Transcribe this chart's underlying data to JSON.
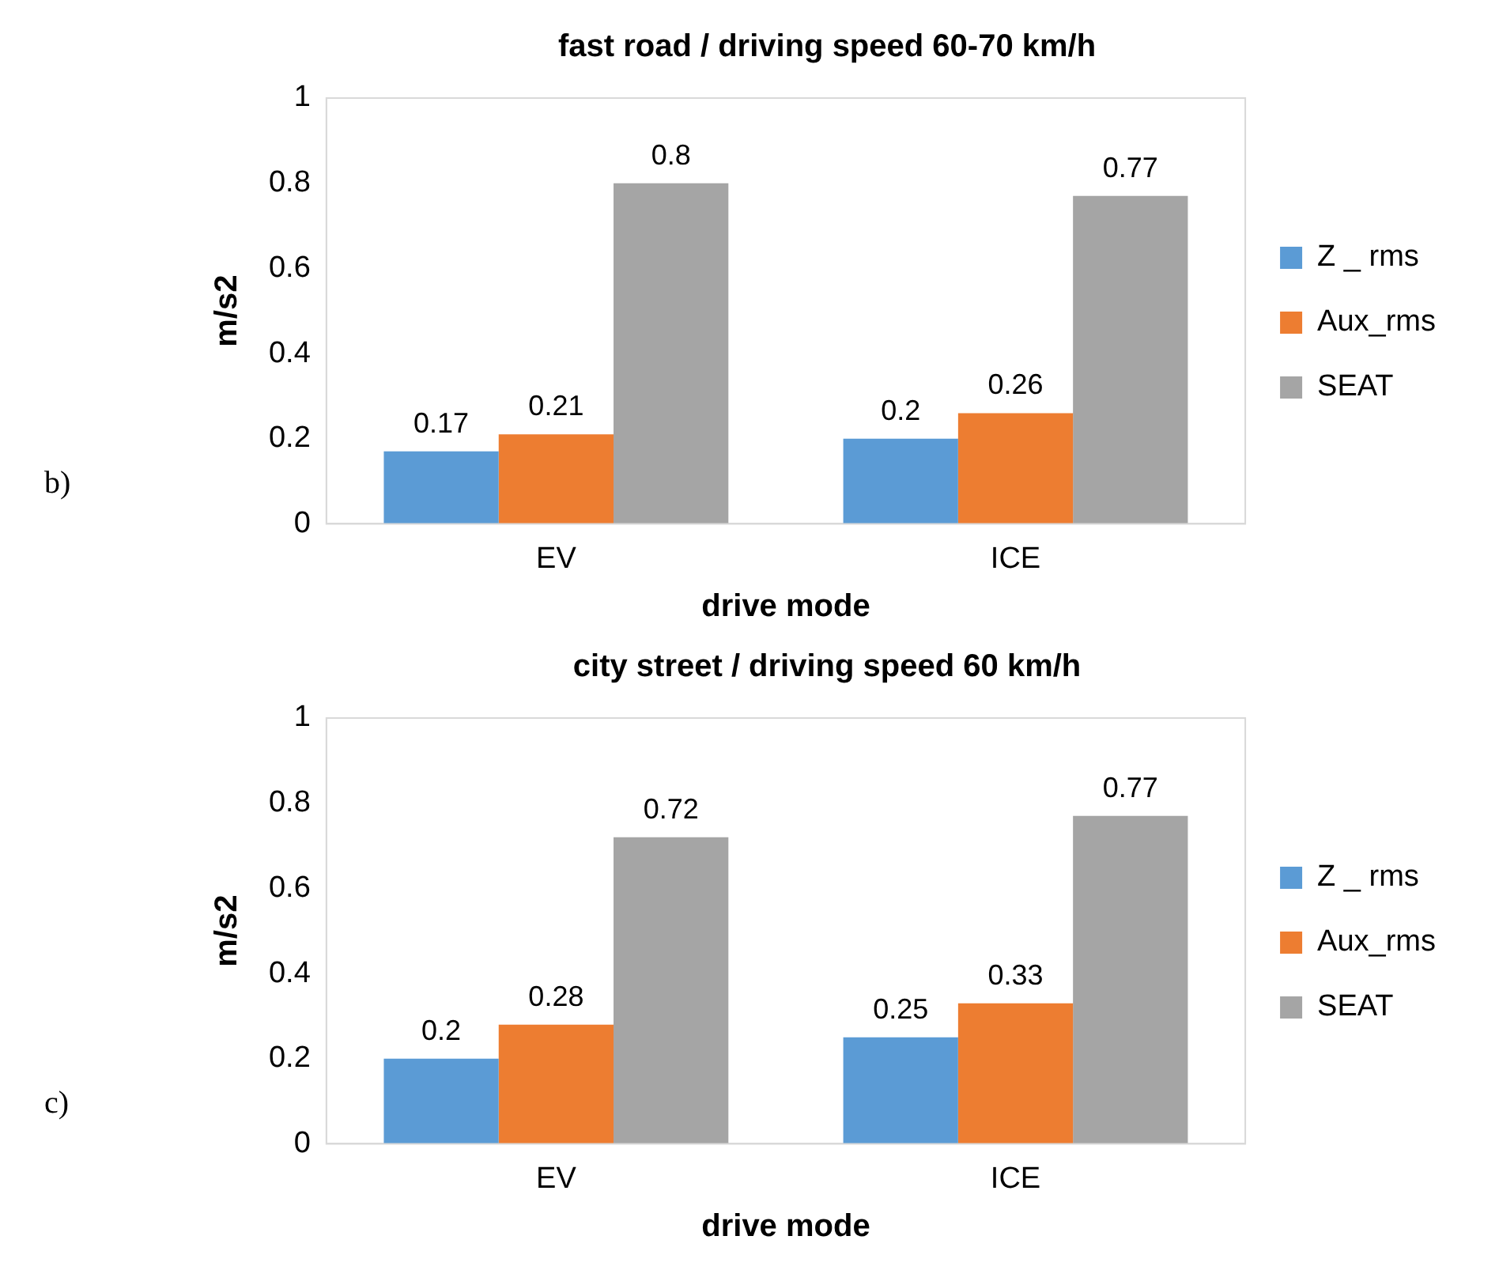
{
  "chart_data": [
    {
      "type": "bar",
      "title": "fast road / driving speed 60-70 km/h",
      "xlabel": "drive mode",
      "ylabel": "m/s2",
      "categories": [
        "EV",
        "ICE"
      ],
      "series": [
        {
          "name": "Z _ rms",
          "color": "#5b9bd5",
          "values": [
            0.17,
            0.2
          ]
        },
        {
          "name": "Aux_rms",
          "color": "#ed7d31",
          "values": [
            0.21,
            0.26
          ]
        },
        {
          "name": "SEAT",
          "color": "#a5a5a5",
          "values": [
            0.8,
            0.77
          ]
        }
      ],
      "ylim": [
        0,
        1
      ],
      "yticks": [
        0,
        0.2,
        0.4,
        0.6,
        0.8,
        1
      ],
      "grid": false,
      "legend": "right",
      "data_labels": true,
      "annotations": [
        "b)"
      ]
    },
    {
      "type": "bar",
      "title": "city street / driving speed 60 km/h",
      "xlabel": "drive mode",
      "ylabel": "m/s2",
      "categories": [
        "EV",
        "ICE"
      ],
      "series": [
        {
          "name": "Z _ rms",
          "color": "#5b9bd5",
          "values": [
            0.2,
            0.25
          ]
        },
        {
          "name": "Aux_rms",
          "color": "#ed7d31",
          "values": [
            0.28,
            0.33
          ]
        },
        {
          "name": "SEAT",
          "color": "#a5a5a5",
          "values": [
            0.72,
            0.77
          ]
        }
      ],
      "ylim": [
        0,
        1
      ],
      "yticks": [
        0,
        0.2,
        0.4,
        0.6,
        0.8,
        1
      ],
      "grid": false,
      "legend": "right",
      "data_labels": true,
      "annotations": [
        "c)"
      ]
    }
  ]
}
